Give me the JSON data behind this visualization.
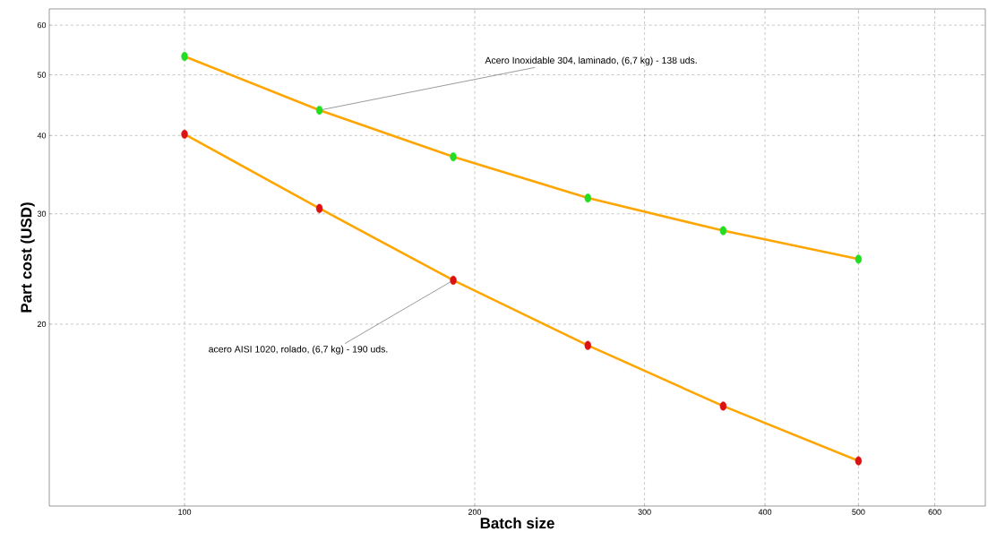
{
  "chart_data": {
    "type": "line",
    "xlabel": "Batch size",
    "ylabel": "Part cost (USD)",
    "log": "xy",
    "grid": true,
    "marker": "circle",
    "line_style": "solid",
    "x": [
      100,
      138,
      190,
      262,
      362,
      500
    ],
    "series": [
      {
        "color": "#ffa500",
        "colors": [
          "#22dd22",
          "#22dd22",
          "#22dd22",
          "#22dd22",
          "#22dd22",
          "#22dd22"
        ],
        "values": [
          53.5,
          43.9,
          37.0,
          31.8,
          28.2,
          25.4
        ]
      },
      {
        "color": "#ffa500",
        "colors": [
          "#dd1111",
          "#dd1111",
          "#dd1111",
          "#dd1111",
          "#dd1111",
          "#dd1111"
        ],
        "values": [
          40.2,
          30.6,
          23.5,
          18.5,
          14.8,
          12.1
        ]
      }
    ],
    "xlim": [
      72.4,
      677
    ],
    "ylim": [
      10.25,
      63.7
    ],
    "xticks": [
      100,
      200,
      300,
      400,
      500,
      600
    ],
    "yticks": [
      20,
      30,
      40,
      50,
      60
    ],
    "annotations": [
      {
        "text": "Acero Inoxidable 304, laminado, (6,7 kg) - 138 uds.",
        "x": 138,
        "y": 43.9
      },
      {
        "text": "acero AISI 1020, rolado, (6,7 kg) - 190 uds.",
        "x": 190,
        "y": 23.5
      }
    ]
  }
}
